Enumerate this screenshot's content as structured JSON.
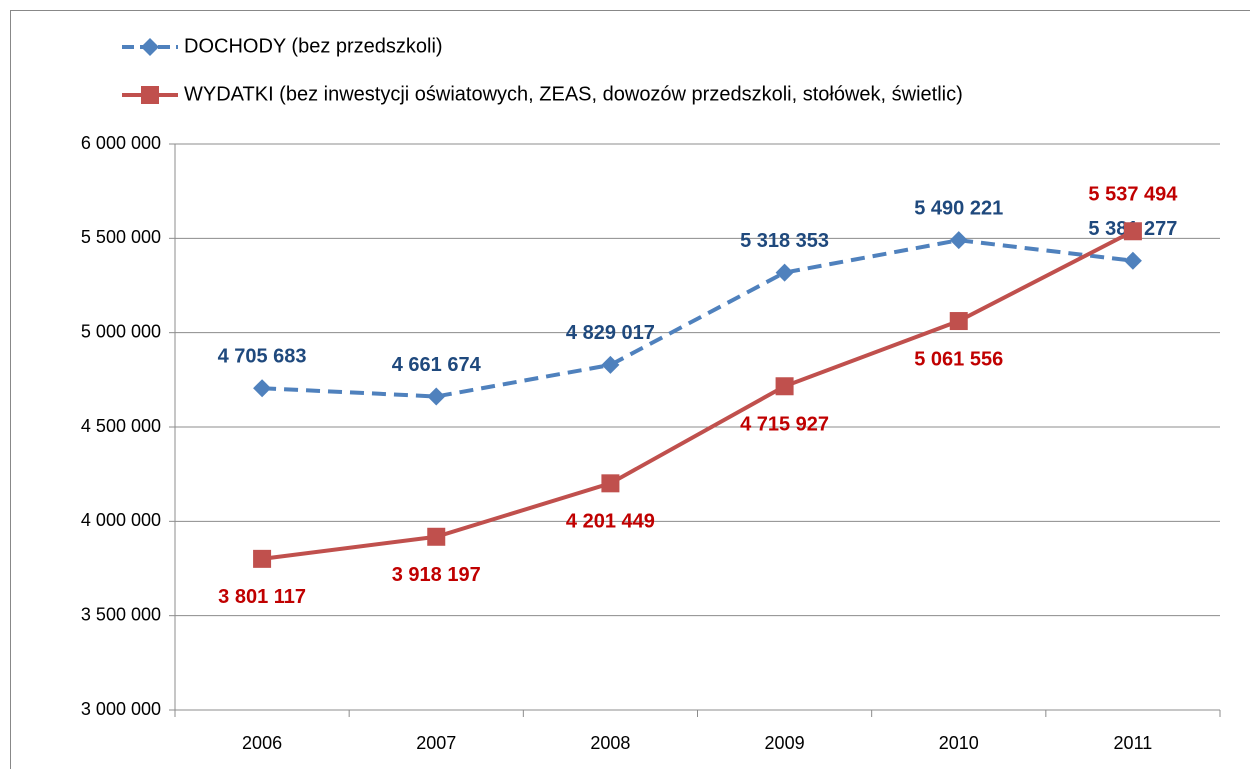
{
  "chart_data": {
    "type": "line",
    "categories": [
      "2006",
      "2007",
      "2008",
      "2009",
      "2010",
      "2011"
    ],
    "series": [
      {
        "name": "DOCHODY (bez przedszkoli)",
        "color": "#4f81bd",
        "label_color": "#1f497d",
        "marker": "diamond",
        "dashed": true,
        "values": [
          4705683,
          4661674,
          4829017,
          5318353,
          5490221,
          5381277
        ],
        "value_labels": [
          "4 705 683",
          "4 661 674",
          "4 829 017",
          "5 318 353",
          "5 490 221",
          "5 381 277"
        ]
      },
      {
        "name": "WYDATKI (bez inwestycji oświatowych, ZEAS, dowozów przedszkoli, stołówek, świetlic)",
        "color": "#c0504d",
        "label_color": "#c00000",
        "marker": "square",
        "dashed": false,
        "values": [
          3801117,
          3918197,
          4201449,
          4715927,
          5061556,
          5537494
        ],
        "value_labels": [
          "3 801 117",
          "3 918 197",
          "4 201 449",
          "4 715 927",
          "5 061 556",
          "5 537 494"
        ]
      }
    ],
    "ylim": [
      3000000,
      6000000
    ],
    "yticks": [
      {
        "value": 3000000,
        "label": "3 000 000"
      },
      {
        "value": 3500000,
        "label": "3 500 000"
      },
      {
        "value": 4000000,
        "label": "4 000 000"
      },
      {
        "value": 4500000,
        "label": "4 500 000"
      },
      {
        "value": 5000000,
        "label": "5 000 000"
      },
      {
        "value": 5500000,
        "label": "5 500 000"
      },
      {
        "value": 6000000,
        "label": "6 000 000"
      }
    ],
    "grid": true,
    "legend": "top-left"
  }
}
